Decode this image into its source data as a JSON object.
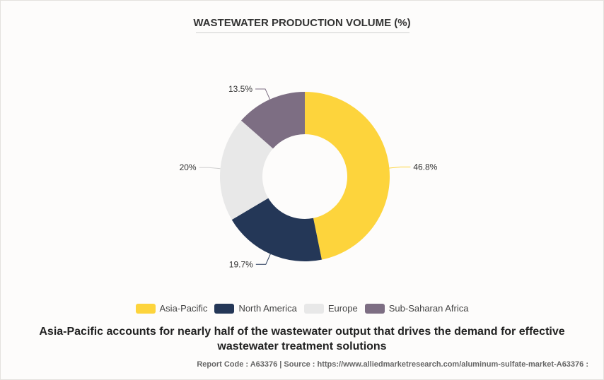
{
  "title": "WASTEWATER PRODUCTION VOLUME (%)",
  "caption": "Asia-Pacific accounts for nearly half of the wastewater output that drives the demand for effective wastewater treatment solutions",
  "source": "Report Code : A63376  |  Source : https://www.alliedmarketresearch.com/aluminum-sulfate-market-A63376 :",
  "chart_data": {
    "type": "pie",
    "variant": "donut",
    "categories": [
      "Asia-Pacific",
      "North America",
      "Europe",
      "Sub-Saharan Africa"
    ],
    "values": [
      46.8,
      19.7,
      20,
      13.5
    ],
    "labels": [
      "46.8%",
      "19.7%",
      "20%",
      "13.5%"
    ],
    "colors": [
      "#fdd43c",
      "#243757",
      "#e8e8e8",
      "#7d6e83"
    ],
    "legend_position": "bottom"
  }
}
